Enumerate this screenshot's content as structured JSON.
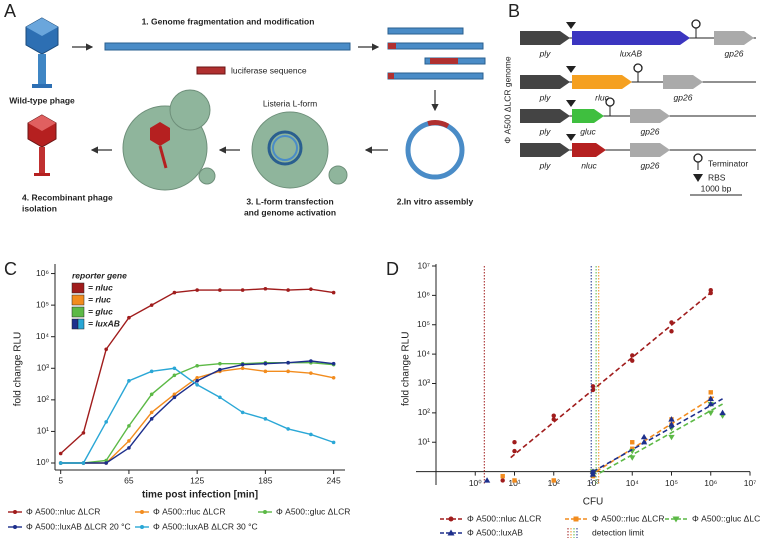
{
  "panel_a": {
    "letter": "A",
    "step1": "1. Genome fragmentation and modification",
    "insert": "luciferase sequence",
    "wild_type": "Wild-type phage",
    "lform": "Listeria L-form",
    "step4": [
      "4. Recombinant phage",
      "isolation"
    ],
    "step3": [
      "3. L-form transfection",
      "and genome activation"
    ],
    "step2": "2.In vitro assembly"
  },
  "panel_b": {
    "letter": "B",
    "axis_label": "Φ A500 ΔLCR genome",
    "rows": [
      {
        "genes": [
          "ply",
          "luxAB",
          "gp26"
        ],
        "color": "#3b35c0"
      },
      {
        "genes": [
          "ply",
          "rluc",
          "gp26"
        ],
        "color": "#f5a020"
      },
      {
        "genes": [
          "ply",
          "gluc",
          "gp26"
        ],
        "color": "#3fbf3f"
      },
      {
        "genes": [
          "ply",
          "nluc",
          "gp26"
        ],
        "color": "#b52020"
      }
    ],
    "legend": {
      "terminator": "Terminator",
      "rbs": "RBS",
      "scale": "1000 bp"
    }
  },
  "chart_data": [
    {
      "type": "line",
      "letter": "C",
      "xlabel": "time  post infection [min]",
      "ylabel": "fold change RLU",
      "log_y": true,
      "x": [
        5,
        25,
        45,
        65,
        85,
        105,
        125,
        145,
        165,
        185,
        205,
        225,
        245
      ],
      "xlim": [
        0,
        255
      ],
      "xticks": [
        5,
        65,
        125,
        185,
        245
      ],
      "ylim": [
        0.6,
        1500000
      ],
      "yticks": [
        {
          "value": 1,
          "label": "10⁰"
        },
        {
          "value": 10,
          "label": "10¹"
        },
        {
          "value": 100,
          "label": "10²"
        },
        {
          "value": 1000,
          "label": "10³"
        },
        {
          "value": 10000,
          "label": "10⁴"
        },
        {
          "value": 100000,
          "label": "10⁵"
        },
        {
          "value": 1000000,
          "label": "10⁶"
        }
      ],
      "reporter_legend": {
        "title": "reporter gene",
        "entries": [
          {
            "name": "= nluc",
            "colors": [
              "#a01c1c"
            ]
          },
          {
            "name": "= rluc",
            "colors": [
              "#f28c1e"
            ]
          },
          {
            "name": "= gluc",
            "colors": [
              "#5cb946"
            ]
          },
          {
            "name": "= luxAB",
            "colors": [
              "#1d2f8c",
              "#2aa7d6"
            ]
          }
        ]
      },
      "series": [
        {
          "name": "Φ A500::nluc ΔLCR",
          "color": "#a01c1c",
          "values": [
            2,
            9,
            4000,
            40000,
            100000,
            250000,
            300000,
            300000,
            300000,
            330000,
            300000,
            320000,
            250000
          ]
        },
        {
          "name": "Φ A500::rluc ΔLCR",
          "color": "#f28c1e",
          "values": [
            1,
            1,
            1,
            5,
            40,
            150,
            500,
            800,
            1000,
            800,
            800,
            700,
            500
          ]
        },
        {
          "name": "Φ A500::gluc ΔLCR",
          "color": "#5cb946",
          "values": [
            1,
            1,
            1.2,
            15,
            150,
            600,
            1200,
            1400,
            1400,
            1500,
            1500,
            1500,
            1300
          ]
        },
        {
          "name": "Φ A500::luxAB ΔLCR 20 °C",
          "color": "#1d2f8c",
          "values": [
            1,
            1,
            1,
            3,
            25,
            120,
            400,
            900,
            1300,
            1400,
            1500,
            1700,
            1400
          ]
        },
        {
          "name": "Φ A500::luxAB ΔLCR 30 °C",
          "color": "#2aa7d6",
          "values": [
            1,
            1,
            20,
            400,
            800,
            1000,
            300,
            120,
            40,
            25,
            12,
            8,
            4.5
          ]
        }
      ]
    },
    {
      "type": "scatter",
      "letter": "D",
      "xlabel": "CFU",
      "ylabel": "fold change RLU",
      "log_x": true,
      "log_y": true,
      "xlim": [
        0.1,
        10000000
      ],
      "xticks": [
        {
          "value": 1,
          "label": "10⁰"
        },
        {
          "value": 10,
          "label": "10¹"
        },
        {
          "value": 100,
          "label": "10²"
        },
        {
          "value": 1000,
          "label": "10³"
        },
        {
          "value": 10000,
          "label": "10⁴"
        },
        {
          "value": 100000,
          "label": "10⁵"
        },
        {
          "value": 1000000,
          "label": "10⁶"
        },
        {
          "value": 10000000,
          "label": "10⁷"
        }
      ],
      "ylim": [
        0.35,
        10000000
      ],
      "yticks": [
        {
          "value": 10,
          "label": "10¹"
        },
        {
          "value": 100,
          "label": "10²"
        },
        {
          "value": 1000,
          "label": "10³"
        },
        {
          "value": 10000,
          "label": "10⁴"
        },
        {
          "value": 100000,
          "label": "10⁵"
        },
        {
          "value": 1000000,
          "label": "10⁶"
        },
        {
          "value": 10000000,
          "label": "10⁷"
        }
      ],
      "detection_label": "detection limit",
      "series": [
        {
          "name": "Φ A500::nluc ΔLCR",
          "color": "#a01c1c",
          "marker": "circle",
          "x": [
            5,
            10,
            10,
            100,
            100,
            1000,
            1000,
            10000,
            10000,
            100000,
            100000,
            1000000,
            1000000
          ],
          "values": [
            0.5,
            10,
            5,
            80,
            60,
            800,
            600,
            9000,
            6000,
            120000,
            60000,
            1500000,
            1200000
          ],
          "fit": {
            "x": [
              8,
              1200000
            ],
            "y": [
              3,
              1500000
            ]
          },
          "detection_limit": 1.7
        },
        {
          "name": "Φ A500::rluc ΔLCR",
          "color": "#f28c1e",
          "marker": "square",
          "x": [
            5,
            10,
            100,
            1000,
            1000,
            10000,
            10000,
            100000,
            100000,
            1000000,
            1000000
          ],
          "values": [
            0.7,
            0.5,
            0.5,
            1,
            0.7,
            10,
            6,
            60,
            40,
            500,
            300
          ],
          "fit": {
            "x": [
              1200,
              1200000
            ],
            "y": [
              1,
              350
            ]
          },
          "detection_limit": 1400
        },
        {
          "name": "Φ A500::gluc ΔLCR",
          "color": "#5cb946",
          "marker": "triangle-down",
          "x": [
            1000,
            1000,
            10000,
            10000,
            100000,
            100000,
            1000000,
            1000000,
            2000000
          ],
          "values": [
            1,
            0.8,
            5,
            3,
            30,
            15,
            200,
            100,
            80
          ],
          "fit": {
            "x": [
              1500,
              2000000
            ],
            "y": [
              0.9,
              200
            ]
          },
          "detection_limit": 1200
        },
        {
          "name": "Φ A500::luxAB",
          "color": "#1d2f8c",
          "marker": "triangle-up",
          "x": [
            2,
            1000,
            1000,
            20000,
            20000,
            100000,
            100000,
            1000000,
            1000000,
            2000000
          ],
          "values": [
            0.5,
            1,
            0.8,
            15,
            10,
            60,
            40,
            300,
            200,
            100
          ],
          "fit": {
            "x": [
              1000,
              2000000
            ],
            "y": [
              1,
              300
            ]
          },
          "detection_limit": 900
        }
      ]
    }
  ]
}
